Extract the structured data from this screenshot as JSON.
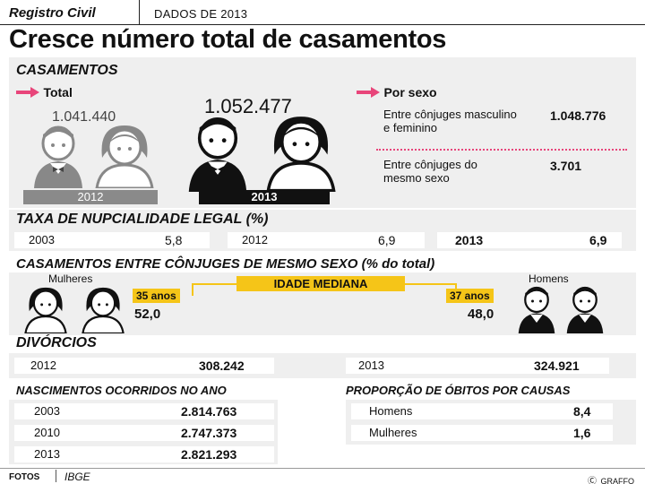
{
  "header": {
    "tag": "Registro Civil",
    "subtitle": "DADOS DE 2013",
    "title": "Cresce número total de casamentos"
  },
  "casamentos": {
    "heading": "CASAMENTOS",
    "total_label": "Total",
    "value_2012": "1.041.440",
    "year_2012": "2012",
    "value_2013": "1.052.477",
    "year_2013": "2013",
    "por_sexo_label": "Por sexo",
    "rows": [
      {
        "label": "Entre cônjuges masculino e feminino",
        "value": "1.048.776"
      },
      {
        "label": "Entre cônjuges do mesmo sexo",
        "value": "3.701"
      }
    ]
  },
  "nupcialidade": {
    "heading": "TAXA DE NUPCIALIDADE LEGAL (%)",
    "items": [
      {
        "year": "2003",
        "value": "5,8"
      },
      {
        "year": "2012",
        "value": "6,9"
      },
      {
        "year": "2013",
        "value": "6,9"
      }
    ]
  },
  "mesmo_sexo": {
    "heading": "CASAMENTOS ENTRE CÔNJUGES DE MESMO SEXO (% do total)",
    "mulheres_label": "Mulheres",
    "homens_label": "Homens",
    "idade_label": "IDADE MEDIANA",
    "mulheres_age": "35 anos",
    "homens_age": "37 anos",
    "mulheres_pct": "52,0",
    "homens_pct": "48,0"
  },
  "divorcios": {
    "heading": "DIVÓRCIOS",
    "items": [
      {
        "year": "2012",
        "value": "308.242"
      },
      {
        "year": "2013",
        "value": "324.921"
      }
    ]
  },
  "nascimentos": {
    "heading": "NASCIMENTOS OCORRIDOS NO ANO",
    "items": [
      {
        "year": "2003",
        "value": "2.814.763"
      },
      {
        "year": "2010",
        "value": "2.747.373"
      },
      {
        "year": "2013",
        "value": "2.821.293"
      }
    ]
  },
  "obitos": {
    "heading": "PROPORÇÃO DE ÓBITOS POR CAUSAS",
    "items": [
      {
        "label": "Homens",
        "value": "8,4"
      },
      {
        "label": "Mulheres",
        "value": "1,6"
      }
    ]
  },
  "footer": {
    "fotos_label": "FOTOS",
    "source": "IBGE",
    "credit": "GRAFFO"
  },
  "colors": {
    "accent_pink": "#e8457a",
    "badge_yellow": "#f5c518",
    "dark": "#111111",
    "gray_bar": "#888888"
  }
}
